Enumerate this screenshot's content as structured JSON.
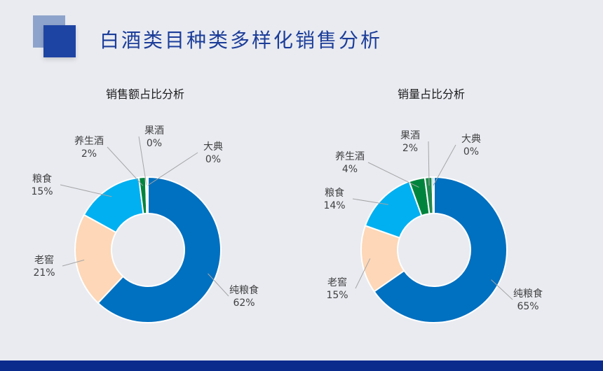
{
  "page": {
    "title": "白酒类目种类多样化销售分析"
  },
  "colors": {
    "纯粮食": "#0070c0",
    "老窖": "#fdd7b7",
    "粮食": "#00b0f0",
    "养生酒": "#00843d",
    "果酒": "#1f8a4c",
    "大典": "#3c8dbc",
    "title": "#1c3d99",
    "bottom_bar": "#0a2a8c"
  },
  "chart_data": [
    {
      "type": "pie",
      "title": "销售额占比分析",
      "series": [
        {
          "name": "纯粮食",
          "value": 62,
          "label": "62%"
        },
        {
          "name": "老窖",
          "value": 21,
          "label": "21%"
        },
        {
          "name": "粮食",
          "value": 15,
          "label": "15%"
        },
        {
          "name": "养生酒",
          "value": 1.5,
          "label": "2%"
        },
        {
          "name": "果酒",
          "value": 0.3,
          "label": "0%"
        },
        {
          "name": "大典",
          "value": 0.2,
          "label": "0%"
        }
      ]
    },
    {
      "type": "pie",
      "title": "销量占比分析",
      "series": [
        {
          "name": "纯粮食",
          "value": 65,
          "label": "65%"
        },
        {
          "name": "老窖",
          "value": 15,
          "label": "15%"
        },
        {
          "name": "粮食",
          "value": 14,
          "label": "14%"
        },
        {
          "name": "养生酒",
          "value": 3.5,
          "label": "4%"
        },
        {
          "name": "果酒",
          "value": 1.6,
          "label": "2%"
        },
        {
          "name": "大典",
          "value": 0.4,
          "label": "0%"
        }
      ]
    }
  ]
}
